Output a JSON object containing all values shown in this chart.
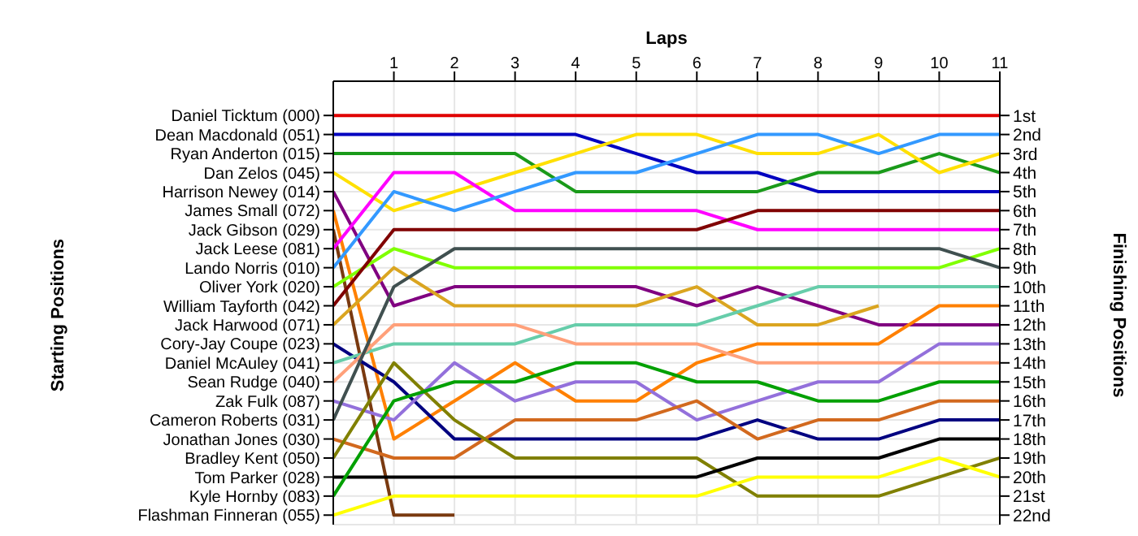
{
  "chart_data": {
    "type": "line",
    "title": "Laps",
    "annotations": [
      "Starting Positions"
    ],
    "y2label": "Finishing Positions",
    "x": [
      0,
      1,
      2,
      3,
      4,
      5,
      6,
      7,
      8,
      9,
      10,
      11
    ],
    "xlim": [
      0,
      11
    ],
    "xticks": [
      1,
      2,
      3,
      4,
      5,
      6,
      7,
      8,
      9,
      10,
      11
    ],
    "y_categories": [
      "Daniel Ticktum (000)",
      "Dean Macdonald (051)",
      "Ryan Anderton (015)",
      "Dan Zelos (045)",
      "Harrison Newey (014)",
      "James Small (072)",
      "Jack Gibson (029)",
      "Jack Leese (081)",
      "Lando Norris (010)",
      "Oliver York (020)",
      "William Tayforth (042)",
      "Jack Harwood (071)",
      "Cory-Jay Coupe (023)",
      "Daniel McAuley (041)",
      "Sean Rudge (040)",
      "Zak Fulk (087)",
      "Cameron Roberts (031)",
      "Jonathan Jones (030)",
      "Bradley Kent (050)",
      "Tom Parker (028)",
      "Kyle Hornby (083)",
      "Flashman Finneran (055)"
    ],
    "y2lim": [
      22.5,
      -0.8
    ],
    "y2ticks": [
      {
        "value": 1,
        "label": "1st"
      },
      {
        "value": 2,
        "label": "2nd"
      },
      {
        "value": 3,
        "label": "3rd"
      },
      {
        "value": 4,
        "label": "4th"
      },
      {
        "value": 5,
        "label": "5th"
      },
      {
        "value": 6,
        "label": "6th"
      },
      {
        "value": 7,
        "label": "7th"
      },
      {
        "value": 8,
        "label": "8th"
      },
      {
        "value": 9,
        "label": "9th"
      },
      {
        "value": 10,
        "label": "10th"
      },
      {
        "value": 11,
        "label": "11th"
      },
      {
        "value": 12,
        "label": "12th"
      },
      {
        "value": 13,
        "label": "13th"
      },
      {
        "value": 14,
        "label": "14th"
      },
      {
        "value": 15,
        "label": "15th"
      },
      {
        "value": 16,
        "label": "16th"
      },
      {
        "value": 17,
        "label": "17th"
      },
      {
        "value": 18,
        "label": "18th"
      },
      {
        "value": 19,
        "label": "19th"
      },
      {
        "value": 20,
        "label": "20th"
      },
      {
        "value": 21,
        "label": "21st"
      },
      {
        "value": 22,
        "label": "22nd"
      }
    ],
    "grid": true,
    "legend": false,
    "marker": "none",
    "line_style": "solid",
    "series": [
      {
        "axis": "y2",
        "color": "#e00000",
        "values": [
          1,
          1,
          1,
          1,
          1,
          1,
          1,
          1,
          1,
          1,
          1,
          1
        ]
      },
      {
        "axis": "y2",
        "color": "#0000c0",
        "values": [
          2,
          2,
          2,
          2,
          2,
          3,
          4,
          4,
          5,
          5,
          5,
          5
        ]
      },
      {
        "axis": "y2",
        "color": "#1a9a1a",
        "values": [
          3,
          3,
          3,
          3,
          5,
          5,
          5,
          5,
          4,
          4,
          3,
          4
        ]
      },
      {
        "axis": "y2",
        "color": "#ffe000",
        "values": [
          4,
          6,
          5,
          4,
          3,
          2,
          2,
          3,
          3,
          2,
          4,
          3
        ]
      },
      {
        "axis": "y2",
        "color": "#800080",
        "values": [
          5,
          11,
          10,
          10,
          10,
          10,
          11,
          10,
          11,
          12,
          12,
          12
        ]
      },
      {
        "axis": "y2",
        "color": "#ff8000",
        "values": [
          6,
          18,
          16,
          14,
          16,
          16,
          14,
          13,
          13,
          13,
          11,
          11
        ]
      },
      {
        "axis": "y2",
        "color": "#7a3a10",
        "values": [
          7,
          22,
          22,
          null,
          null,
          null,
          null,
          null,
          null,
          null,
          null,
          null
        ]
      },
      {
        "axis": "y2",
        "color": "#ff00ff",
        "values": [
          8,
          4,
          4,
          6,
          6,
          6,
          6,
          7,
          7,
          7,
          7,
          7
        ]
      },
      {
        "axis": "y2",
        "color": "#3399ff",
        "values": [
          9,
          5,
          6,
          5,
          4,
          4,
          3,
          2,
          2,
          3,
          2,
          2
        ]
      },
      {
        "axis": "y2",
        "color": "#80ff00",
        "values": [
          10,
          8,
          9,
          9,
          9,
          9,
          9,
          9,
          9,
          9,
          9,
          8
        ]
      },
      {
        "axis": "y2",
        "color": "#800000",
        "values": [
          11,
          7,
          7,
          7,
          7,
          7,
          7,
          6,
          6,
          6,
          6,
          6
        ]
      },
      {
        "axis": "y2",
        "color": "#daa520",
        "values": [
          12,
          9,
          11,
          11,
          11,
          11,
          10,
          12,
          12,
          11,
          null,
          null
        ]
      },
      {
        "axis": "y2",
        "color": "#000080",
        "values": [
          13,
          15,
          18,
          18,
          18,
          18,
          18,
          17,
          18,
          18,
          17,
          17
        ]
      },
      {
        "axis": "y2",
        "color": "#66cdaa",
        "values": [
          14,
          13,
          13,
          13,
          12,
          12,
          12,
          11,
          10,
          10,
          10,
          10
        ]
      },
      {
        "axis": "y2",
        "color": "#ffa07a",
        "values": [
          15,
          12,
          12,
          12,
          13,
          13,
          13,
          14,
          14,
          14,
          14,
          14
        ]
      },
      {
        "axis": "y2",
        "color": "#9370db",
        "values": [
          16,
          17,
          14,
          16,
          15,
          15,
          17,
          16,
          15,
          15,
          13,
          13
        ]
      },
      {
        "axis": "y2",
        "color": "#405050",
        "values": [
          17,
          10,
          8,
          8,
          8,
          8,
          8,
          8,
          8,
          8,
          8,
          9
        ]
      },
      {
        "axis": "y2",
        "color": "#d2691e",
        "values": [
          18,
          19,
          19,
          17,
          17,
          17,
          16,
          18,
          17,
          17,
          16,
          16
        ]
      },
      {
        "axis": "y2",
        "color": "#808000",
        "values": [
          19,
          14,
          17,
          19,
          19,
          19,
          19,
          21,
          21,
          21,
          20,
          19
        ]
      },
      {
        "axis": "y2",
        "color": "#000000",
        "values": [
          20,
          20,
          20,
          20,
          20,
          20,
          20,
          19,
          19,
          19,
          18,
          18
        ]
      },
      {
        "axis": "y2",
        "color": "#00a000",
        "values": [
          21,
          16,
          15,
          15,
          14,
          14,
          15,
          15,
          16,
          16,
          15,
          15
        ]
      },
      {
        "axis": "y2",
        "color": "#ffff00",
        "values": [
          22,
          21,
          21,
          21,
          21,
          21,
          21,
          20,
          20,
          20,
          19,
          20
        ]
      }
    ]
  }
}
